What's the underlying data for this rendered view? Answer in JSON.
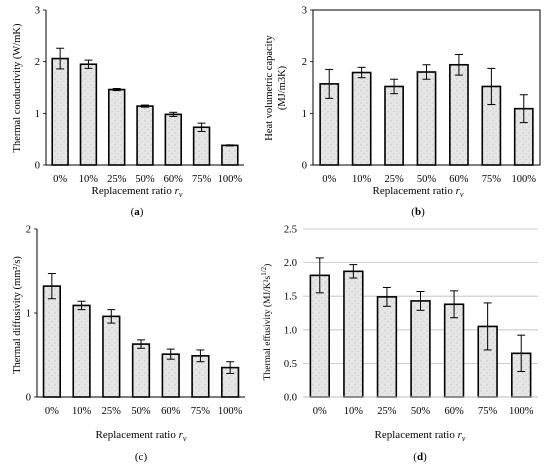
{
  "colors": {
    "bar_fill": "#e6e6e6",
    "bar_speckle": "#c4c4c4",
    "stroke": "#000000",
    "background": "#ffffff"
  },
  "chart_data": [
    {
      "type": "bar",
      "panel_label": "a",
      "categories": [
        "0%",
        "10%",
        "25%",
        "50%",
        "60%",
        "75%",
        "100%"
      ],
      "values": [
        2.06,
        1.95,
        1.46,
        1.14,
        0.98,
        0.73,
        0.38
      ],
      "error": [
        0.2,
        0.08,
        0.02,
        0.02,
        0.04,
        0.08,
        0.01
      ],
      "ylabel": "Thermal conductivity (W/mK)",
      "xlabel_main": "Replacement ratio ",
      "xlabel_var": "r",
      "xlabel_sub": "v",
      "ylim": [
        0,
        3
      ],
      "yticks": [
        "0",
        "1",
        "2",
        "3"
      ],
      "grid": false
    },
    {
      "type": "bar",
      "panel_label": "b",
      "categories": [
        "0%",
        "10%",
        "25%",
        "50%",
        "60%",
        "75%",
        "100%"
      ],
      "values": [
        1.57,
        1.79,
        1.52,
        1.8,
        1.94,
        1.52,
        1.09
      ],
      "error": [
        0.28,
        0.1,
        0.14,
        0.14,
        0.2,
        0.35,
        0.27
      ],
      "ylabel_line1": "Heat volumetric capacity",
      "ylabel_line2": "(MJ/m3K)",
      "xlabel_main": "Replacement ratio ",
      "xlabel_var": "r",
      "xlabel_sub": "v",
      "ylim": [
        0,
        3
      ],
      "yticks": [
        "0",
        "1",
        "2",
        "3"
      ],
      "grid": false
    },
    {
      "type": "bar",
      "panel_label": "c",
      "categories": [
        "0%",
        "10%",
        "25%",
        "50%",
        "60%",
        "75%",
        "100%"
      ],
      "values": [
        1.32,
        1.09,
        0.96,
        0.63,
        0.51,
        0.49,
        0.35
      ],
      "error": [
        0.15,
        0.05,
        0.08,
        0.05,
        0.06,
        0.07,
        0.07
      ],
      "ylabel": "Thermal diffusivity (mm²/s)",
      "xlabel_main": "Replacement ratio ",
      "xlabel_var": "r",
      "xlabel_sub": "v",
      "ylim": [
        0,
        2
      ],
      "yticks": [
        "0",
        "1",
        "2"
      ],
      "grid": false
    },
    {
      "type": "bar",
      "panel_label": "d",
      "categories": [
        "0%",
        "10%",
        "25%",
        "50%",
        "60%",
        "75%",
        "100%"
      ],
      "values": [
        1.81,
        1.87,
        1.49,
        1.43,
        1.38,
        1.05,
        0.65
      ],
      "error": [
        0.26,
        0.1,
        0.14,
        0.14,
        0.2,
        0.35,
        0.27
      ],
      "ylabel": "Thermal effusivity (MJ/K²s",
      "ylabel_sup": "1/2",
      "ylabel_close": ")",
      "xlabel_main": "Replacement ratio ",
      "xlabel_var": "r",
      "xlabel_sub": "v",
      "ylim": [
        0,
        2.5
      ],
      "yticks": [
        "0.0",
        "0.5",
        "1.0",
        "1.5",
        "2.0",
        "2.5"
      ],
      "grid": true
    }
  ]
}
